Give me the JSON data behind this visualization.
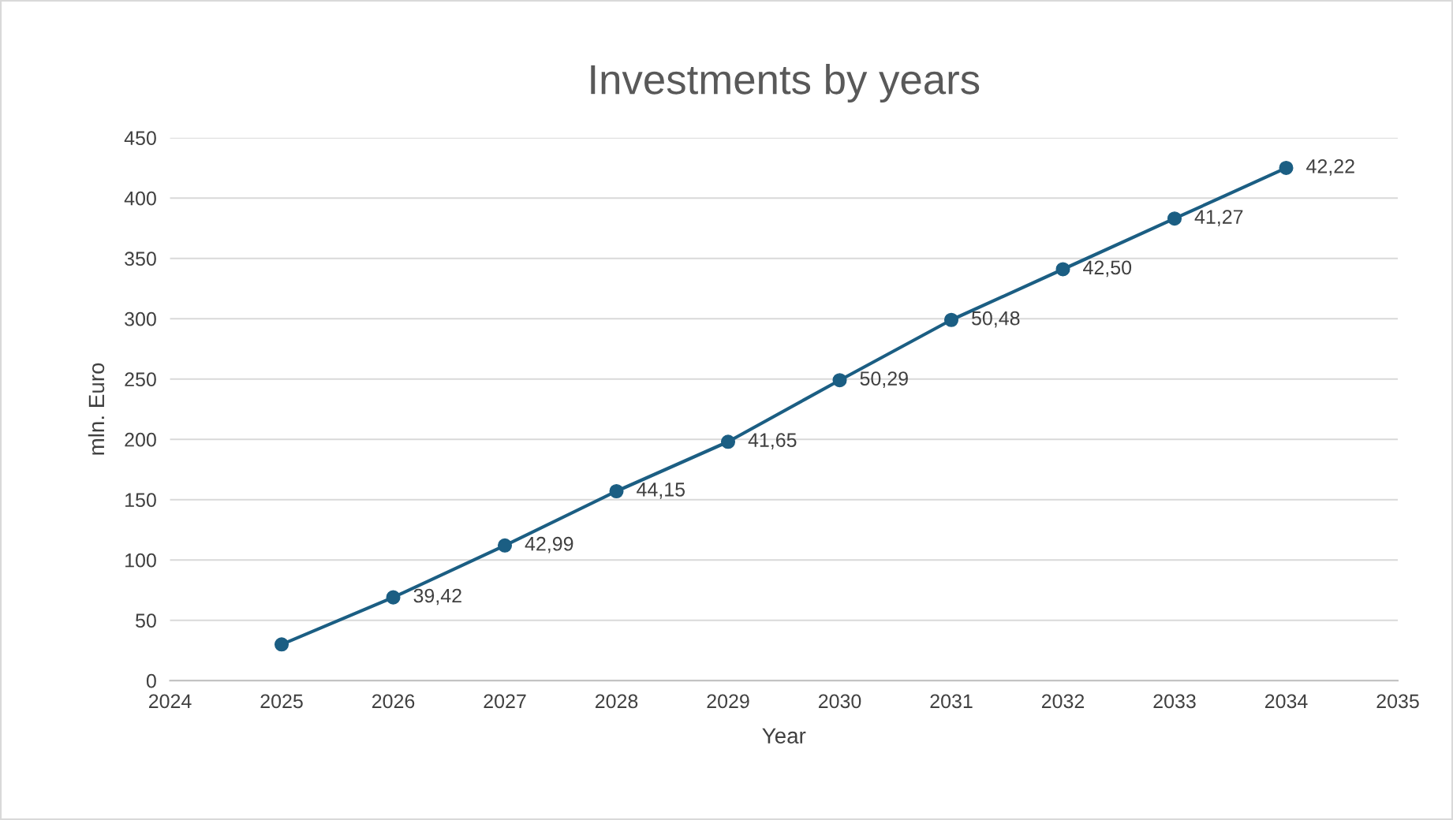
{
  "chart_data": {
    "type": "line",
    "title": "Investments by years",
    "xlabel": "Year",
    "ylabel": "mln. Euro",
    "x": [
      2025,
      2026,
      2027,
      2028,
      2029,
      2030,
      2031,
      2032,
      2033,
      2034
    ],
    "series": [
      {
        "color": "#1b5e83",
        "values": [
          30,
          69,
          112,
          157,
          198,
          249,
          299,
          341,
          383,
          425
        ]
      }
    ],
    "annotations": [
      {
        "text": "39,42",
        "x": 2026,
        "y": 69
      },
      {
        "text": "42,99",
        "x": 2027,
        "y": 112
      },
      {
        "text": "44,15",
        "x": 2028,
        "y": 157
      },
      {
        "text": "41,65",
        "x": 2029,
        "y": 198
      },
      {
        "text": "50,29",
        "x": 2030,
        "y": 249
      },
      {
        "text": "50,48",
        "x": 2031,
        "y": 299
      },
      {
        "text": "42,50",
        "x": 2032,
        "y": 341
      },
      {
        "text": "41,27",
        "x": 2033,
        "y": 383
      },
      {
        "text": "42,22",
        "x": 2034,
        "y": 425
      }
    ],
    "xlim": [
      2024,
      2035
    ],
    "xticks": [
      2024,
      2025,
      2026,
      2027,
      2028,
      2029,
      2030,
      2031,
      2032,
      2033,
      2034,
      2035
    ],
    "ylim": [
      0,
      450
    ],
    "yticks": [
      0,
      50,
      100,
      150,
      200,
      250,
      300,
      350,
      400,
      450
    ],
    "grid": "y",
    "marker": "circle",
    "line_style": "solid",
    "legend": false
  }
}
